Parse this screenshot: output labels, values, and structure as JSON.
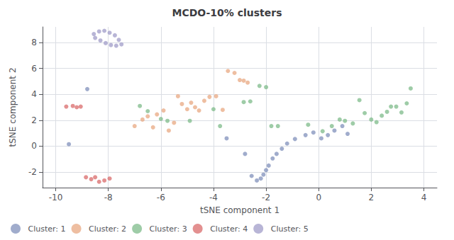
{
  "chart_data": {
    "type": "scatter",
    "title": "MCDO-10% clusters",
    "xlabel": "tSNE component 1",
    "ylabel": "tSNE component 2",
    "xlim": [
      -10.5,
      4.5
    ],
    "ylim": [
      -3.2,
      9.2
    ],
    "xticks": [
      -10,
      -8,
      -6,
      -4,
      -2,
      0,
      2,
      4
    ],
    "yticks": [
      -2,
      0,
      2,
      4,
      6,
      8
    ],
    "grid": true,
    "legend": "lower left",
    "series": [
      {
        "name": "Cluster: 1",
        "color": "#8090bb",
        "x": [
          -9.5,
          -8.8,
          -3.5,
          -2.8,
          -2.55,
          -2.35,
          -2.2,
          -2.1,
          -2.0,
          -1.9,
          -1.75,
          -1.6,
          -1.4,
          -1.2,
          -0.9,
          -0.5,
          -0.2,
          0.1,
          0.35,
          0.6,
          0.9,
          1.1
        ],
        "values": [
          0.15,
          4.4,
          0.6,
          -0.6,
          -2.3,
          -2.65,
          -2.5,
          -2.2,
          -1.85,
          -1.5,
          -0.95,
          -0.6,
          -0.2,
          0.2,
          0.55,
          0.85,
          1.05,
          0.6,
          0.85,
          1.2,
          1.55,
          0.95
        ]
      },
      {
        "name": "Cluster: 2",
        "color": "#e8a882",
        "x": [
          -7.0,
          -6.7,
          -6.5,
          -6.3,
          -6.15,
          -5.9,
          -5.7,
          -5.5,
          -5.35,
          -5.2,
          -5.0,
          -4.85,
          -4.7,
          -4.55,
          -4.35,
          -4.15,
          -3.9,
          -3.65,
          -3.45,
          -3.2,
          -3.0,
          -2.85,
          -2.7
        ],
        "values": [
          1.55,
          2.05,
          2.3,
          1.45,
          2.45,
          2.75,
          1.2,
          1.8,
          3.85,
          3.25,
          2.85,
          3.35,
          3.0,
          2.75,
          3.5,
          3.8,
          3.85,
          2.8,
          5.8,
          5.65,
          5.1,
          5.05,
          4.9
        ]
      },
      {
        "name": "Cluster: 3",
        "color": "#7dbb8a",
        "x": [
          -6.8,
          -6.5,
          -6.0,
          -5.75,
          -4.9,
          -4.0,
          -3.75,
          -2.85,
          -2.6,
          -2.25,
          -2.0,
          -1.8,
          -1.55,
          -0.4,
          0.15,
          0.5,
          0.8,
          1.0,
          1.3,
          1.55,
          1.75,
          2.0,
          2.2,
          2.4,
          2.6,
          2.75,
          2.95,
          3.15,
          3.35,
          3.5
        ],
        "values": [
          3.1,
          2.7,
          2.1,
          1.95,
          1.95,
          2.85,
          1.55,
          3.4,
          3.45,
          4.65,
          4.55,
          1.55,
          1.55,
          1.65,
          1.15,
          1.55,
          2.05,
          1.95,
          1.75,
          3.55,
          2.55,
          2.05,
          1.85,
          2.35,
          2.65,
          3.05,
          3.05,
          2.6,
          3.3,
          4.45
        ]
      },
      {
        "name": "Cluster: 4",
        "color": "#d96b6b",
        "x": [
          -9.6,
          -9.35,
          -9.2,
          -9.05,
          -8.85,
          -8.65,
          -8.5,
          -8.35,
          -8.15,
          -7.95
        ],
        "values": [
          3.05,
          3.1,
          3.0,
          3.05,
          -2.4,
          -2.55,
          -2.4,
          -2.75,
          -2.65,
          -2.5
        ]
      },
      {
        "name": "Cluster: 5",
        "color": "#a09cc8",
        "x": [
          -8.55,
          -8.35,
          -8.15,
          -7.95,
          -7.75,
          -7.6,
          -7.5,
          -7.7,
          -7.9,
          -8.1,
          -8.3,
          -8.5
        ],
        "values": [
          8.65,
          8.85,
          8.9,
          8.75,
          8.55,
          8.2,
          7.85,
          7.75,
          7.8,
          7.95,
          8.15,
          8.35
        ]
      }
    ]
  }
}
